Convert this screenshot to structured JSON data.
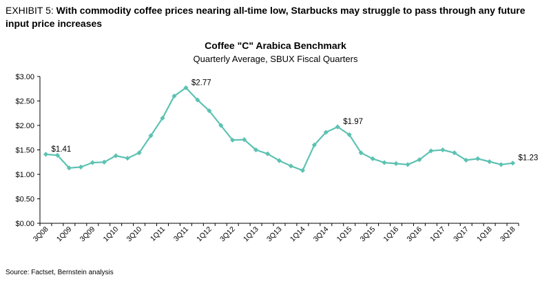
{
  "header": {
    "exhibit_label": "EXHIBIT 5:",
    "title": "With commodity coffee prices nearing all-time low, Starbucks may struggle to pass through any future input price increases"
  },
  "source": "Source: Factset, Bernstein analysis",
  "colors": {
    "line": "#5cc2b2",
    "axis": "#000000"
  },
  "chart_data": {
    "type": "line",
    "title": "Coffee \"C\" Arabica Benchmark",
    "subtitle": "Quarterly Average,  SBUX Fiscal Quarters",
    "xlabel": "",
    "ylabel": "",
    "ylim": [
      0,
      3
    ],
    "y_ticks": [
      "$0.00",
      "$0.50",
      "$1.00",
      "$1.50",
      "$2.00",
      "$2.50",
      "$3.00"
    ],
    "grid": false,
    "x": [
      "3Q08",
      "4Q08",
      "1Q09",
      "2Q09",
      "3Q09",
      "4Q09",
      "1Q10",
      "2Q10",
      "3Q10",
      "4Q10",
      "1Q11",
      "2Q11",
      "3Q11",
      "4Q11",
      "1Q12",
      "2Q12",
      "3Q12",
      "4Q12",
      "1Q13",
      "2Q13",
      "3Q13",
      "4Q13",
      "1Q14",
      "2Q14",
      "3Q14",
      "4Q14",
      "1Q15",
      "2Q15",
      "3Q15",
      "4Q15",
      "1Q16",
      "2Q16",
      "3Q16",
      "4Q16",
      "1Q17",
      "2Q17",
      "3Q17",
      "4Q17",
      "1Q18",
      "2Q18",
      "3Q18"
    ],
    "x_tick_labels": [
      "3Q08",
      "1Q09",
      "3Q09",
      "1Q10",
      "3Q10",
      "1Q11",
      "3Q11",
      "1Q12",
      "3Q12",
      "1Q13",
      "3Q13",
      "1Q14",
      "3Q14",
      "1Q15",
      "3Q15",
      "1Q16",
      "3Q16",
      "1Q17",
      "3Q17",
      "1Q18",
      "3Q18"
    ],
    "series": [
      {
        "values": [
          1.41,
          1.39,
          1.13,
          1.15,
          1.24,
          1.25,
          1.38,
          1.33,
          1.44,
          1.79,
          2.15,
          2.6,
          2.77,
          2.52,
          2.3,
          2.0,
          1.7,
          1.71,
          1.5,
          1.42,
          1.28,
          1.17,
          1.08,
          1.6,
          1.86,
          1.97,
          1.81,
          1.44,
          1.32,
          1.24,
          1.22,
          1.2,
          1.3,
          1.48,
          1.5,
          1.44,
          1.29,
          1.32,
          1.26,
          1.2,
          1.23
        ]
      }
    ],
    "annotations": [
      {
        "index": 0,
        "text": "$1.41"
      },
      {
        "index": 12,
        "text": "$2.77"
      },
      {
        "index": 25,
        "text": "$1.97"
      },
      {
        "index": 40,
        "text": "$1.23"
      }
    ]
  }
}
